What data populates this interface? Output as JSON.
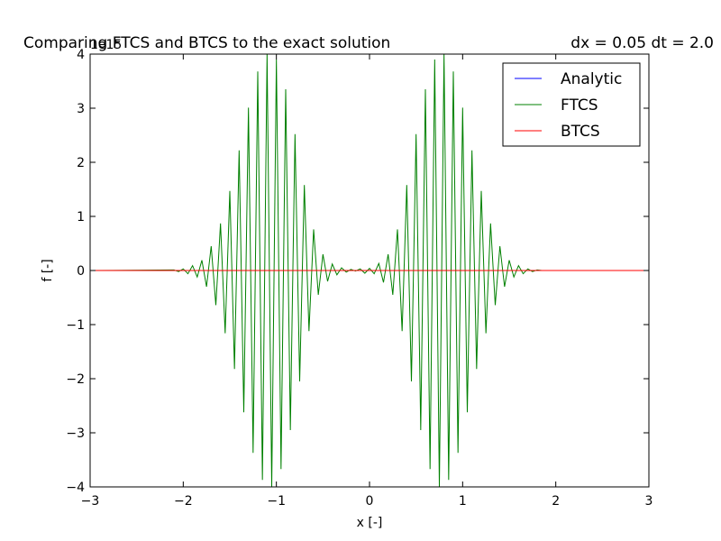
{
  "chart_data": {
    "type": "line",
    "title_left": "Comparing FTCS and BTCS to the exact solution",
    "title_right": "dx = 0.05 dt = 2.0",
    "xlabel": "x [-]",
    "ylabel": "f [-]",
    "y_offset_label": "1e15",
    "xlim": [
      -3,
      3
    ],
    "ylim": [
      -4,
      4
    ],
    "xticks": [
      -3,
      -2,
      -1,
      0,
      1,
      2,
      3
    ],
    "xtick_labels": [
      "−3",
      "−2",
      "−1",
      "0",
      "1",
      "2",
      "3"
    ],
    "yticks": [
      -4,
      -3,
      -2,
      -1,
      0,
      1,
      2,
      3,
      4
    ],
    "ytick_labels": [
      "−4",
      "−3",
      "−2",
      "−1",
      "0",
      "1",
      "2",
      "3",
      "4"
    ],
    "grid": false,
    "legend_position": "top-right",
    "series": [
      {
        "name": "Analytic",
        "color": "#0000ff",
        "x": [
          -3,
          3
        ],
        "y": [
          0,
          0
        ]
      },
      {
        "name": "FTCS",
        "color": "#008000",
        "x": [
          -3.0,
          -2.1,
          -2.05,
          -2.0,
          -1.95,
          -1.9,
          -1.85,
          -1.8,
          -1.75,
          -1.7,
          -1.65,
          -1.6,
          -1.55,
          -1.5,
          -1.45,
          -1.4,
          -1.35,
          -1.3,
          -1.25,
          -1.2,
          -1.15,
          -1.1,
          -1.05,
          -1.0,
          -0.95,
          -0.9,
          -0.85,
          -0.8,
          -0.75,
          -0.7,
          -0.65,
          -0.6,
          -0.55,
          -0.5,
          -0.45,
          -0.4,
          -0.35,
          -0.3,
          -0.25,
          -0.2,
          -0.15,
          -0.1,
          -0.05,
          0.0,
          0.05,
          0.1,
          0.15,
          0.2,
          0.25,
          0.3,
          0.35,
          0.4,
          0.45,
          0.5,
          0.55,
          0.6,
          0.65,
          0.7,
          0.75,
          0.8,
          0.85,
          0.9,
          0.95,
          1.0,
          1.05,
          1.1,
          1.15,
          1.2,
          1.25,
          1.3,
          1.35,
          1.4,
          1.45,
          1.5,
          1.55,
          1.6,
          1.65,
          1.7,
          1.75,
          1.8,
          1.85,
          1.9,
          1.95,
          2.0,
          2.05,
          2.1,
          3.0
        ],
        "y": [
          0.0,
          0.01,
          -0.02,
          0.03,
          -0.06,
          0.09,
          -0.12,
          0.19,
          -0.3,
          0.45,
          -0.64,
          0.87,
          -1.16,
          1.47,
          -1.82,
          2.22,
          -2.62,
          3.01,
          -3.37,
          3.68,
          -3.87,
          4.0,
          -4.0,
          3.9,
          -3.67,
          3.35,
          -2.95,
          2.52,
          -2.05,
          1.58,
          -1.12,
          0.76,
          -0.45,
          0.3,
          -0.2,
          0.12,
          -0.08,
          0.05,
          -0.03,
          0.02,
          -0.01,
          0.03,
          -0.05,
          0.04,
          -0.06,
          0.13,
          -0.22,
          0.3,
          -0.45,
          0.76,
          -1.12,
          1.58,
          -2.05,
          2.52,
          -2.95,
          3.35,
          -3.67,
          3.9,
          -4.0,
          4.0,
          -3.87,
          3.68,
          -3.37,
          3.01,
          -2.62,
          2.22,
          -1.82,
          1.47,
          -1.16,
          0.87,
          -0.64,
          0.45,
          -0.3,
          0.19,
          -0.12,
          0.09,
          -0.06,
          0.03,
          -0.02,
          0.01,
          0.0,
          0.0,
          0.0,
          0.0,
          0.0,
          0.0,
          0.0
        ]
      },
      {
        "name": "BTCS",
        "color": "#ff0000",
        "x": [
          -3,
          3
        ],
        "y": [
          0,
          0
        ]
      }
    ]
  }
}
